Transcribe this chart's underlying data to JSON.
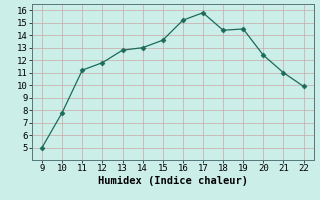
{
  "x": [
    9,
    10,
    11,
    12,
    13,
    14,
    15,
    16,
    17,
    18,
    19,
    20,
    21,
    22
  ],
  "y": [
    5.0,
    7.8,
    11.2,
    11.8,
    12.8,
    13.0,
    13.6,
    15.2,
    15.8,
    14.4,
    14.5,
    12.4,
    11.0,
    9.9
  ],
  "line_color": "#1a6b5a",
  "marker": "D",
  "marker_size": 2.5,
  "xlabel": "Humidex (Indice chaleur)",
  "xlim": [
    8.5,
    22.5
  ],
  "ylim": [
    4,
    16.5
  ],
  "xticks": [
    9,
    10,
    11,
    12,
    13,
    14,
    15,
    16,
    17,
    18,
    19,
    20,
    21,
    22
  ],
  "yticks": [
    5,
    6,
    7,
    8,
    9,
    10,
    11,
    12,
    13,
    14,
    15,
    16
  ],
  "bg_color": "#cceee8",
  "grid_color": "#c8a8a8",
  "tick_label_fontsize": 6.5,
  "xlabel_fontsize": 7.5
}
